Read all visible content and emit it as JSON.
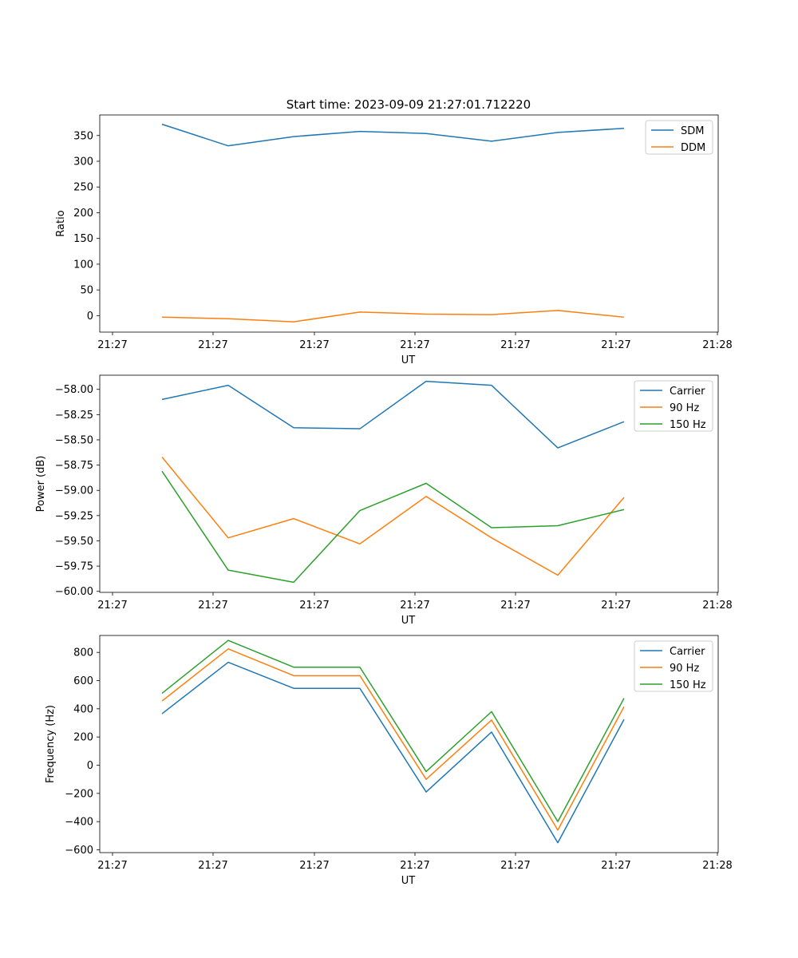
{
  "figure_title": "Start time: 2023-09-09 21:27:01.712220",
  "colors": {
    "blue": "#1f77b4",
    "orange": "#ff7f0e",
    "green": "#2ca02c"
  },
  "chart_data": [
    {
      "type": "line",
      "title": "Start time: 2023-09-09 21:27:01.712220",
      "xlabel": "UT",
      "ylabel": "Ratio",
      "x_tick_labels": [
        "21:27",
        "21:27",
        "21:27",
        "21:27",
        "21:27",
        "21:27",
        "21:28"
      ],
      "y_ticks": [
        0,
        50,
        100,
        150,
        200,
        250,
        300,
        350
      ],
      "ylim": [
        -32,
        390
      ],
      "legend_position": "top-right",
      "x": [
        1,
        2,
        3,
        4,
        5,
        6,
        7,
        8
      ],
      "series": [
        {
          "name": "SDM",
          "color": "#1f77b4",
          "values": [
            372,
            330,
            348,
            358,
            354,
            339,
            356,
            364
          ]
        },
        {
          "name": "DDM",
          "color": "#ff7f0e",
          "values": [
            -3,
            -6,
            -12,
            7,
            3,
            2,
            10,
            -3
          ]
        }
      ]
    },
    {
      "type": "line",
      "title": "",
      "xlabel": "UT",
      "ylabel": "Power (dB)",
      "x_tick_labels": [
        "21:27",
        "21:27",
        "21:27",
        "21:27",
        "21:27",
        "21:27",
        "21:28"
      ],
      "y_ticks": [
        -60.0,
        -59.75,
        -59.5,
        -59.25,
        -59.0,
        -58.75,
        -58.5,
        -58.25,
        -58.0
      ],
      "y_tick_labels": [
        "−60.00",
        "−59.75",
        "−59.50",
        "−59.25",
        "−59.00",
        "−58.75",
        "−58.50",
        "−58.25",
        "−58.00"
      ],
      "ylim": [
        -60.01,
        -57.86
      ],
      "legend_position": "top-right",
      "x": [
        1,
        2,
        3,
        4,
        5,
        6,
        7,
        8
      ],
      "series": [
        {
          "name": "Carrier",
          "color": "#1f77b4",
          "values": [
            -58.1,
            -57.96,
            -58.38,
            -58.39,
            -57.92,
            -57.96,
            -58.58,
            -58.32
          ]
        },
        {
          "name": "90 Hz",
          "color": "#ff7f0e",
          "values": [
            -58.67,
            -59.47,
            -59.28,
            -59.53,
            -59.06,
            -59.47,
            -59.84,
            -59.07
          ]
        },
        {
          "name": "150 Hz",
          "color": "#2ca02c",
          "values": [
            -58.81,
            -59.79,
            -59.91,
            -59.2,
            -58.93,
            -59.37,
            -59.35,
            -59.19
          ]
        }
      ]
    },
    {
      "type": "line",
      "title": "",
      "xlabel": "UT",
      "ylabel": "Frequency (Hz)",
      "x_tick_labels": [
        "21:27",
        "21:27",
        "21:27",
        "21:27",
        "21:27",
        "21:27",
        "21:28"
      ],
      "y_ticks": [
        -600,
        -400,
        -200,
        0,
        200,
        400,
        600,
        800
      ],
      "y_tick_labels": [
        "−600",
        "−400",
        "−200",
        "0",
        "200",
        "400",
        "600",
        "800"
      ],
      "ylim": [
        -620,
        920
      ],
      "legend_position": "top-right",
      "x": [
        1,
        2,
        3,
        4,
        5,
        6,
        7,
        8
      ],
      "series": [
        {
          "name": "Carrier",
          "color": "#1f77b4",
          "values": [
            365,
            730,
            545,
            545,
            -190,
            235,
            -550,
            325
          ]
        },
        {
          "name": "90 Hz",
          "color": "#ff7f0e",
          "values": [
            455,
            825,
            635,
            635,
            -100,
            320,
            -460,
            415
          ]
        },
        {
          "name": "150 Hz",
          "color": "#2ca02c",
          "values": [
            510,
            885,
            695,
            695,
            -45,
            380,
            -400,
            475
          ]
        }
      ]
    }
  ]
}
